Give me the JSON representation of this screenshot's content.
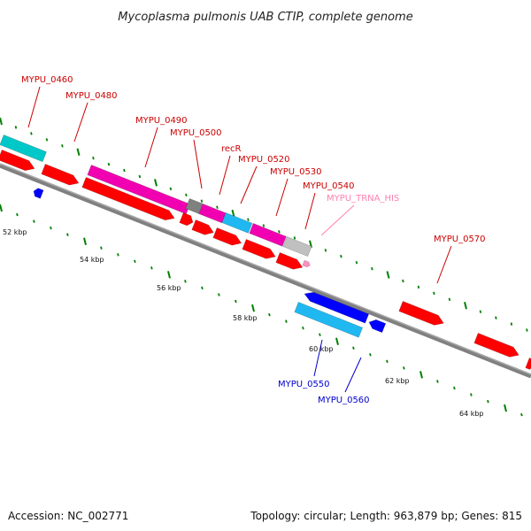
{
  "title": "Mycoplasma pulmonis UAB CTIP, complete genome",
  "footer": {
    "accession": "Accession: NC_002771",
    "summary": "Topology: circular; Length: 963,879 bp; Genes: 815"
  },
  "colors": {
    "forward_gene": "#ff0000",
    "reverse_gene": "#0000ff",
    "cyan_gene": "#00c8c8",
    "sky_gene": "#20b8f0",
    "magenta_gene": "#f000b0",
    "grey_gene": "#808080",
    "trna_gene": "#c0c0c0",
    "backbone": "#808080",
    "ticks": "#008000",
    "forward_label": "#cc0000",
    "reverse_label": "#0000cc",
    "trna_label": "#ff80b0"
  },
  "scale_labels": [
    "52 kbp",
    "54 kbp",
    "56 kbp",
    "58 kbp",
    "60 kbp",
    "62 kbp",
    "64 kbp"
  ],
  "gene_labels": [
    {
      "text": "MYPU_0460",
      "strand": "forward"
    },
    {
      "text": "MYPU_0480",
      "strand": "forward"
    },
    {
      "text": "MYPU_0490",
      "strand": "forward"
    },
    {
      "text": "MYPU_0500",
      "strand": "forward"
    },
    {
      "text": "recR",
      "strand": "forward"
    },
    {
      "text": "MYPU_0520",
      "strand": "forward"
    },
    {
      "text": "MYPU_0530",
      "strand": "forward"
    },
    {
      "text": "MYPU_0540",
      "strand": "forward"
    },
    {
      "text": "MYPU_TRNA_HIS",
      "strand": "trna"
    },
    {
      "text": "MYPU_0570",
      "strand": "forward"
    },
    {
      "text": "MYPU_0550",
      "strand": "reverse"
    },
    {
      "text": "MYPU_0560",
      "strand": "reverse"
    }
  ]
}
